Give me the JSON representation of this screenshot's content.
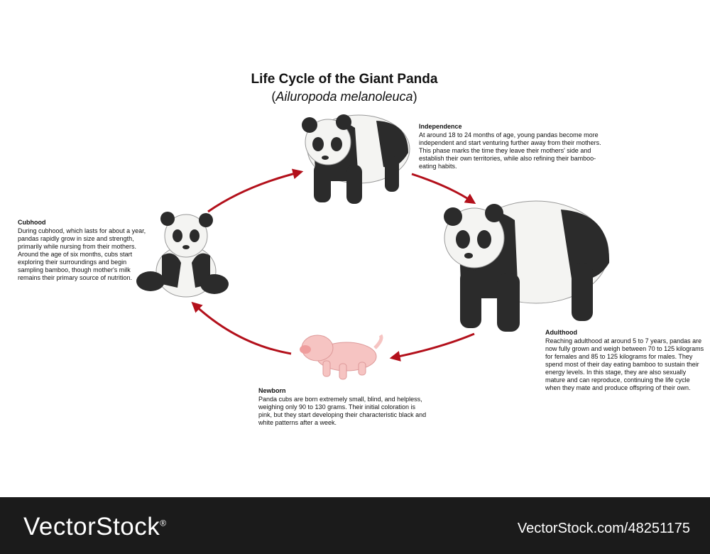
{
  "title": "Life Cycle of the Giant Panda",
  "subtitle": {
    "open": "(",
    "name": "Ailuropoda melanoleuca",
    "close": ")"
  },
  "stages": {
    "independence": {
      "heading": "Independence",
      "text": "At around 18 to 24 months of age, young pandas become more independent and start venturing further away from their mothers. This phase marks the time they leave their mothers' side and establish their own territories, while also refining their bamboo-eating habits."
    },
    "adulthood": {
      "heading": "Adulthood",
      "text": "Reaching adulthood at around 5 to 7 years, pandas are now fully grown and weigh between 70 to 125 kilograms for females and 85 to 125 kilograms for males. They spend most of their day eating bamboo to sustain their energy levels. In this stage, they are also sexually mature and can reproduce, continuing the life cycle when they mate and produce offspring of their own."
    },
    "newborn": {
      "heading": "Newborn",
      "text": "Panda cubs are born extremely small, blind, and helpless, weighing only 90 to 130 grams. Their initial coloration is pink, but they start developing their characteristic black and white patterns after a week."
    },
    "cubhood": {
      "heading": "Cubhood",
      "text": "During cubhood, which lasts for about a year, pandas rapidly grow in size and strength, primarily while nursing from their mothers. Around the age of six months, cubs start exploring their surroundings and begin sampling bamboo, though mother's milk remains their primary source of nutrition."
    }
  },
  "watermark": {
    "brand": "VectorStock",
    "registered": "®",
    "stock_id": "VectorStock.com/48251175"
  },
  "colors": {
    "arrow": "#b3101b",
    "panda_black": "#2b2b2b",
    "panda_white": "#f4f4f2",
    "newborn_pink": "#f6c4c2",
    "footer": "#1b1b1b"
  }
}
